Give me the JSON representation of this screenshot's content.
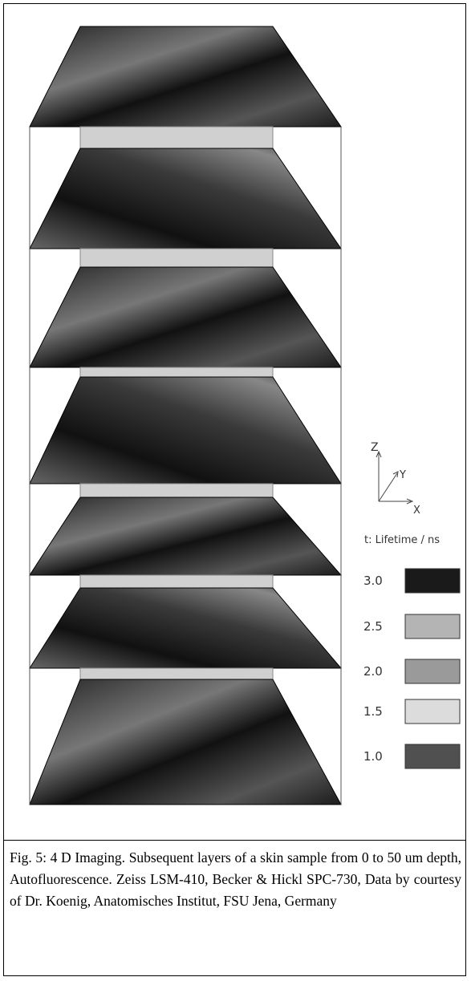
{
  "axes": {
    "z": "Z",
    "y": "Y",
    "x": "X"
  },
  "legend": {
    "title": "t: Lifetime / ns",
    "items": [
      {
        "label": "3.0",
        "color": "#1a1a1a"
      },
      {
        "label": "2.5",
        "color": "#b4b4b4"
      },
      {
        "label": "2.0",
        "color": "#9a9a9a"
      },
      {
        "label": "1.5",
        "color": "#dcdcdc"
      },
      {
        "label": "1.0",
        "color": "#505050"
      }
    ]
  },
  "caption": "Fig. 5: 4 D Imaging. Subsequent layers of a skin sample from 0 to 50 um depth, Autofluorescence. Zeiss LSM-410, Becker & Hickl SPC-730, Data by courtesy of  Dr. Koenig, Anatomisches Institut, FSU Jena, Germany"
}
